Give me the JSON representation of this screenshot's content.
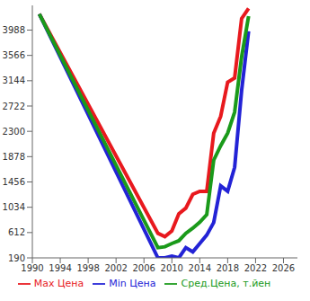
{
  "chart_data": {
    "type": "line",
    "x": [
      1991,
      2008,
      2009,
      2010,
      2011,
      2012,
      2013,
      2014,
      2015,
      2016,
      2017,
      2018,
      2019,
      2020,
      2021
    ],
    "series": [
      {
        "name": "Max Цена",
        "color": "#e8191e",
        "values": [
          4257,
          600,
          545,
          640,
          924,
          1020,
          1250,
          1300,
          1300,
          2270,
          2550,
          3120,
          3190,
          4180,
          4350
        ]
      },
      {
        "name": "Min Цена",
        "color": "#2323d6",
        "values": [
          4257,
          190,
          190,
          220,
          190,
          360,
          290,
          430,
          570,
          780,
          1390,
          1300,
          1700,
          2980,
          3970
        ]
      },
      {
        "name": "Сред.Цена, т.йен",
        "color": "#1a9a1a",
        "values": [
          4257,
          360,
          375,
          430,
          475,
          600,
          685,
          785,
          910,
          1820,
          2060,
          2270,
          2620,
          3540,
          4220
        ]
      }
    ],
    "xlim": [
      1990,
      2028
    ],
    "xticks": [
      1990,
      1994,
      1998,
      2002,
      2006,
      2010,
      2014,
      2018,
      2022,
      2026
    ],
    "ylim": [
      190,
      4400
    ],
    "yticks": [
      190,
      612,
      1034,
      1456,
      1878,
      2300,
      2722,
      3144,
      3566,
      3988
    ],
    "grid": false,
    "legend": "bottom"
  }
}
